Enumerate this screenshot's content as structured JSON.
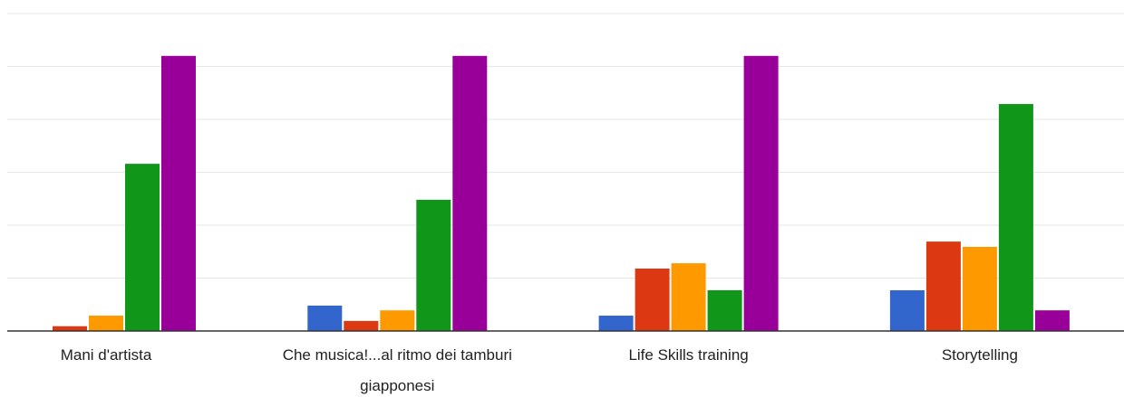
{
  "chart_data": {
    "type": "bar",
    "categories": [
      "Mani d'artista",
      "Che musica!...al ritmo dei tamburi giapponesi",
      "Life Skills training",
      "Storytelling"
    ],
    "series": [
      {
        "color": "#3366cc",
        "values": [
          0,
          0.48,
          0.29,
          0.77
        ]
      },
      {
        "color": "#dc3912",
        "values": [
          0.09,
          0.19,
          1.18,
          1.69
        ]
      },
      {
        "color": "#ff9900",
        "values": [
          0.29,
          0.39,
          1.28,
          1.59
        ]
      },
      {
        "color": "#109618",
        "values": [
          3.16,
          2.48,
          0.77,
          4.29
        ]
      },
      {
        "color": "#990099",
        "values": [
          5.2,
          5.2,
          5.2,
          0.39
        ]
      }
    ],
    "ylim": [
      0,
      6
    ],
    "yticks": [
      0,
      1,
      2,
      3,
      4,
      5,
      6
    ],
    "grid": true
  }
}
